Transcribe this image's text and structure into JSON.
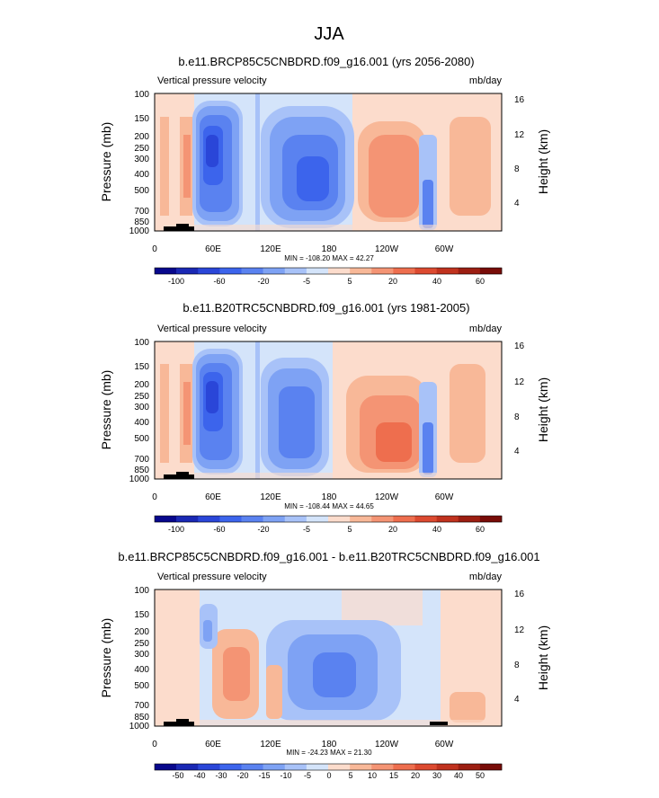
{
  "figure_title": "JJA",
  "chart_data": [
    {
      "type": "heatmap",
      "title": "b.e11.BRCP85C5CNBDRD.f09_g16.001 (yrs 2056-2080)",
      "left_label": "Vertical pressure velocity",
      "right_label": "mb/day",
      "ylabel": "Pressure (mb)",
      "ylabel_right": "Height (km)",
      "x_ticks": [
        "0",
        "60E",
        "120E",
        "180",
        "120W",
        "60W"
      ],
      "y_ticks": [
        "100",
        "150",
        "200",
        "250",
        "300",
        "400",
        "500",
        "700",
        "850",
        "1000"
      ],
      "height_ticks": [
        "16",
        "12",
        "8",
        "4"
      ],
      "min_max_text": "MIN = -108.20   MAX =  42.27",
      "min": -108.2,
      "max": 42.27,
      "colorbar_labels": [
        "-100",
        "-60",
        "-20",
        "-5",
        "5",
        "20",
        "40",
        "60"
      ],
      "levels": [
        -100,
        -80,
        -60,
        -40,
        -20,
        -10,
        -5,
        -1,
        1,
        5,
        10,
        20,
        30,
        40,
        50,
        60
      ]
    },
    {
      "type": "heatmap",
      "title": "b.e11.B20TRC5CNBDRD.f09_g16.001 (yrs 1981-2005)",
      "left_label": "Vertical pressure velocity",
      "right_label": "mb/day",
      "ylabel": "Pressure (mb)",
      "ylabel_right": "Height (km)",
      "x_ticks": [
        "0",
        "60E",
        "120E",
        "180",
        "120W",
        "60W"
      ],
      "y_ticks": [
        "100",
        "150",
        "200",
        "250",
        "300",
        "400",
        "500",
        "700",
        "850",
        "1000"
      ],
      "height_ticks": [
        "16",
        "12",
        "8",
        "4"
      ],
      "min_max_text": "MIN = -108.44   MAX =  44.65",
      "min": -108.44,
      "max": 44.65,
      "colorbar_labels": [
        "-100",
        "-60",
        "-20",
        "-5",
        "5",
        "20",
        "40",
        "60"
      ],
      "levels": [
        -100,
        -80,
        -60,
        -40,
        -20,
        -10,
        -5,
        -1,
        1,
        5,
        10,
        20,
        30,
        40,
        50,
        60
      ]
    },
    {
      "type": "heatmap",
      "title": "b.e11.BRCP85C5CNBDRD.f09_g16.001 - b.e11.B20TRC5CNBDRD.f09_g16.001",
      "left_label": "Vertical pressure velocity",
      "right_label": "mb/day",
      "ylabel": "Pressure (mb)",
      "ylabel_right": "Height (km)",
      "x_ticks": [
        "0",
        "60E",
        "120E",
        "180",
        "120W",
        "60W"
      ],
      "y_ticks": [
        "100",
        "150",
        "200",
        "250",
        "300",
        "400",
        "500",
        "700",
        "850",
        "1000"
      ],
      "height_ticks": [
        "16",
        "12",
        "8",
        "4"
      ],
      "min_max_text": "MIN = -24.23   MAX =  21.30",
      "min": -24.23,
      "max": 21.3,
      "colorbar_labels": [
        "-50",
        "-40",
        "-30",
        "-20",
        "-15",
        "-10",
        "-5",
        "0",
        "5",
        "10",
        "15",
        "20",
        "30",
        "40",
        "50"
      ],
      "levels": [
        -50,
        -40,
        -30,
        -20,
        -15,
        -10,
        -5,
        0,
        5,
        10,
        15,
        20,
        30,
        40,
        50
      ]
    }
  ],
  "colors": {
    "colorbar": [
      "#08088c",
      "#1a28b4",
      "#2a46d8",
      "#3c64ec",
      "#5a82f0",
      "#7ea2f4",
      "#a8c2f8",
      "#d4e4fa",
      "#fcdccc",
      "#f8b898",
      "#f49474",
      "#ee6e4e",
      "#dc4a30",
      "#c0321e",
      "#9c1e12",
      "#780c08"
    ]
  }
}
